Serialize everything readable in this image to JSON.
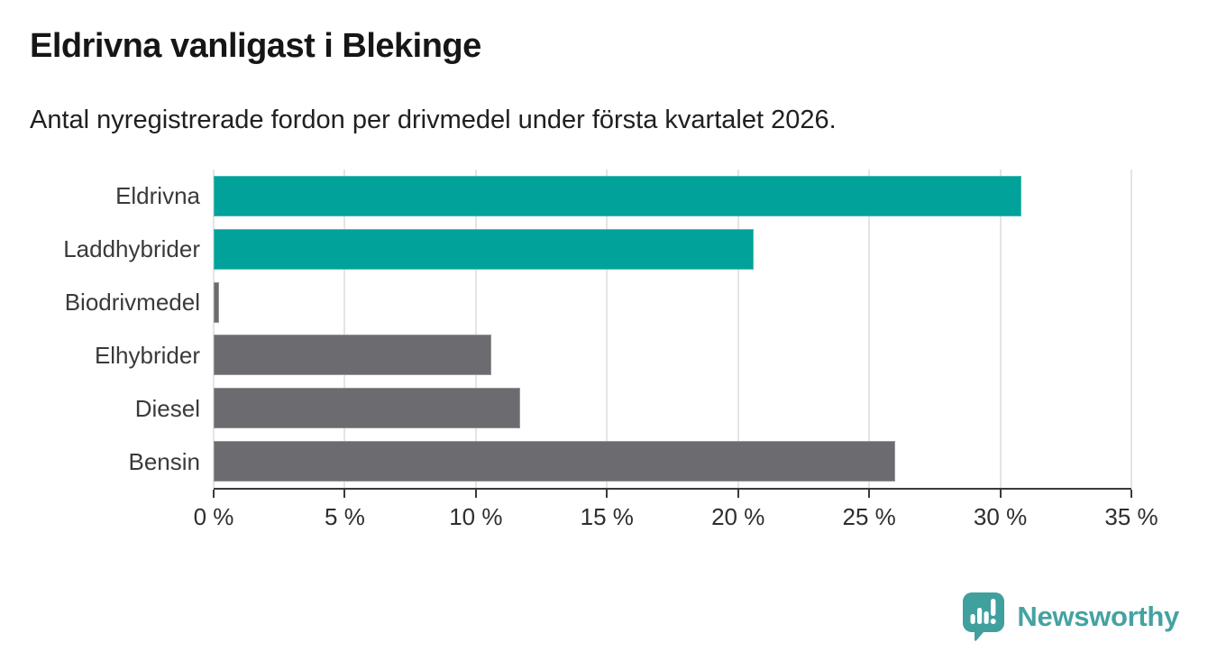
{
  "chart_data": {
    "type": "bar",
    "orientation": "horizontal",
    "title": "Eldrivna vanligast i Blekinge",
    "subtitle": "Antal nyregistrerade fordon per drivmedel under första kvartalet 2026.",
    "categories": [
      "Eldrivna",
      "Laddhybrider",
      "Biodrivmedel",
      "Elhybrider",
      "Diesel",
      "Bensin"
    ],
    "values": [
      30.8,
      20.6,
      0.2,
      10.6,
      11.7,
      26.0
    ],
    "unit": "%",
    "xlim": [
      0,
      35
    ],
    "x_ticks": [
      0,
      5,
      10,
      15,
      20,
      25,
      30,
      35
    ],
    "x_tick_labels": [
      "0 %",
      "5 %",
      "10 %",
      "15 %",
      "20 %",
      "25 %",
      "30 %",
      "35 %"
    ],
    "grid": true,
    "legend": "none",
    "colors": {
      "highlight": "#00a29a",
      "base": "#6c6b70",
      "bar_colors": [
        "#00a29a",
        "#00a29a",
        "#6c6b70",
        "#6c6b70",
        "#6c6b70",
        "#6c6b70"
      ],
      "gridline": "#e4e4e4",
      "axis": "#3a3a3a"
    }
  },
  "brand": {
    "name": "Newsworthy",
    "icon": "newsworthy-pin-barchart-icon",
    "icon_color": "#3fa09e",
    "text_color": "#46a2a2"
  }
}
